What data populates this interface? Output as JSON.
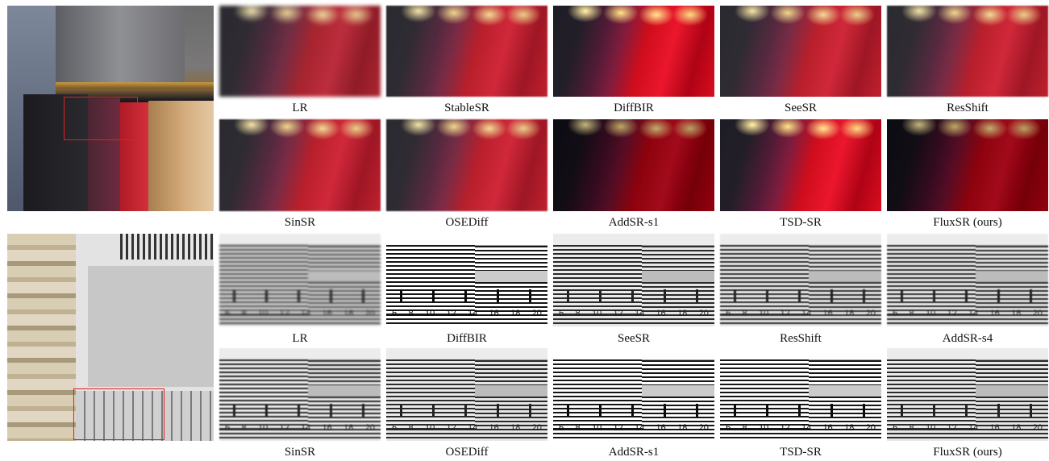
{
  "figure": {
    "scene_clothes": {
      "row1_captions": [
        "LR",
        "StableSR",
        "DiffBIR",
        "SeeSR",
        "ResShift"
      ],
      "row2_captions": [
        "SinSR",
        "OSEDiff",
        "AddSR-s1",
        "TSD-SR",
        "FluxSR (ours)"
      ]
    },
    "scene_chart": {
      "row1_captions": [
        "LR",
        "DiffBIR",
        "SeeSR",
        "ResShift",
        "AddSR-s4"
      ],
      "row2_captions": [
        "SinSR",
        "OSEDiff",
        "AddSR-s1",
        "TSD-SR",
        "FluxSR (ours)"
      ],
      "tick_numbers": [
        "6",
        "8",
        "10",
        "12",
        "14",
        "16",
        "18",
        "20"
      ]
    }
  }
}
